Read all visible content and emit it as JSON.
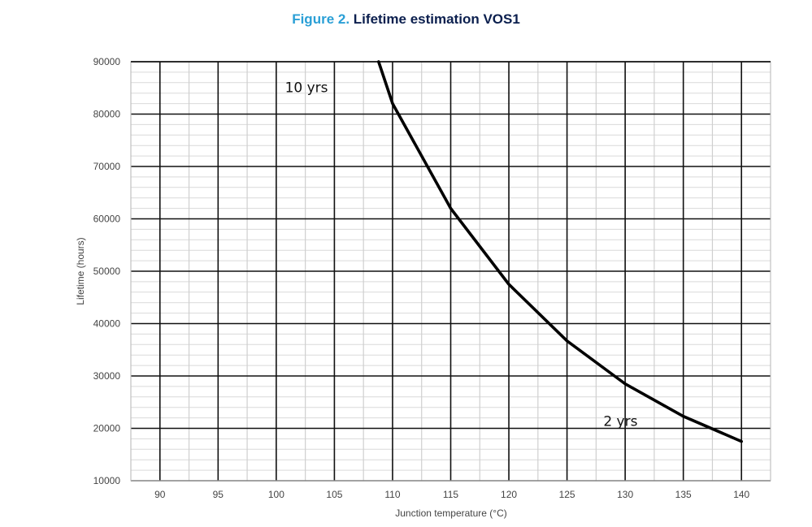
{
  "figure": {
    "number": "Figure 2.",
    "name": "Lifetime estimation VOS1"
  },
  "chart_data": {
    "type": "line",
    "xlabel": "Junction temperature (°C)",
    "ylabel": "Lifetime (hours)",
    "xlim": [
      87.5,
      142.5
    ],
    "ylim": [
      10000,
      90000
    ],
    "x_ticks": [
      90,
      95,
      100,
      105,
      110,
      115,
      120,
      125,
      130,
      135,
      140
    ],
    "y_ticks": [
      10000,
      20000,
      30000,
      40000,
      50000,
      60000,
      70000,
      80000,
      90000
    ],
    "grid": true,
    "series": [
      {
        "x": [
          108.8,
          110,
          115,
          120,
          125,
          130,
          135,
          140
        ],
        "y": [
          90000,
          82000,
          62000,
          47500,
          36700,
          28500,
          22300,
          17500
        ],
        "color": "#000000"
      }
    ],
    "annotations": [
      {
        "text": "10 yrs",
        "x": 102.6,
        "y": 84200
      },
      {
        "text": "2 yrs",
        "x": 129.6,
        "y": 20500
      }
    ]
  }
}
